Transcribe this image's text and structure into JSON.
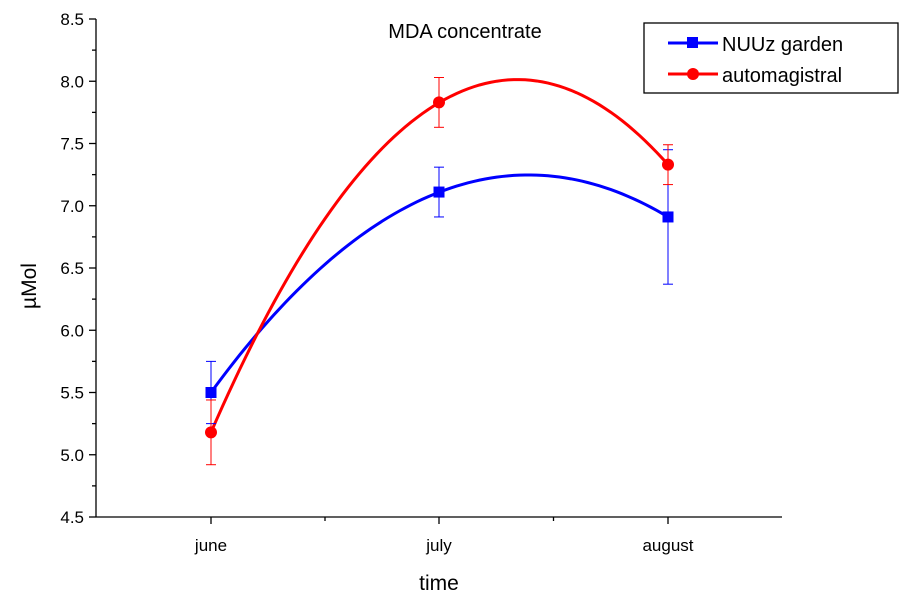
{
  "chart_data": {
    "type": "line",
    "title": "MDA concentrate",
    "xlabel": "time",
    "ylabel": "µMol",
    "categories": [
      "june",
      "july",
      "august"
    ],
    "ylim": [
      4.5,
      8.5
    ],
    "yticks": [
      "4.5",
      "5.0",
      "5.5",
      "6.0",
      "6.5",
      "7.0",
      "7.5",
      "8.0",
      "8.5"
    ],
    "grid": false,
    "legend_position": "top-right",
    "smooth": true,
    "series": [
      {
        "name": "NUUz garden",
        "color": "#0000ff",
        "marker": "square",
        "values": [
          5.5,
          7.11,
          6.91
        ],
        "error": [
          0.25,
          0.2,
          0.54
        ]
      },
      {
        "name": "automagistral",
        "color": "#ff0000",
        "marker": "circle",
        "values": [
          5.18,
          7.83,
          7.33
        ],
        "error": [
          0.26,
          0.2,
          0.16
        ]
      }
    ]
  }
}
